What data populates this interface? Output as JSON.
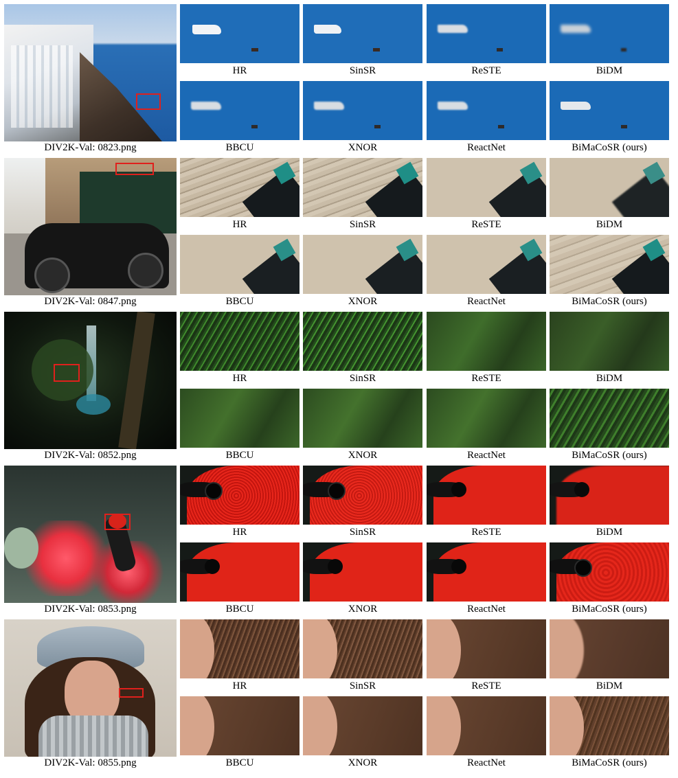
{
  "methods_row1": [
    "HR",
    "SinSR",
    "ReSTE",
    "BiDM"
  ],
  "methods_row2": [
    "BBCU",
    "XNOR",
    "ReactNet",
    "BiMaCoSR (ours)"
  ],
  "groups": [
    {
      "image": "DIV2K-Val: 0823.png",
      "scene": "santorini-coast-with-yacht"
    },
    {
      "image": "DIV2K-Val: 0847.png",
      "scene": "vintage-car-by-cafe"
    },
    {
      "image": "DIV2K-Val: 0852.png",
      "scene": "forest-waterfall-at-night"
    },
    {
      "image": "DIV2K-Val: 0853.png",
      "scene": "red-bird-on-flowers"
    },
    {
      "image": "DIV2K-Val: 0855.png",
      "scene": "woman-with-hat"
    }
  ]
}
